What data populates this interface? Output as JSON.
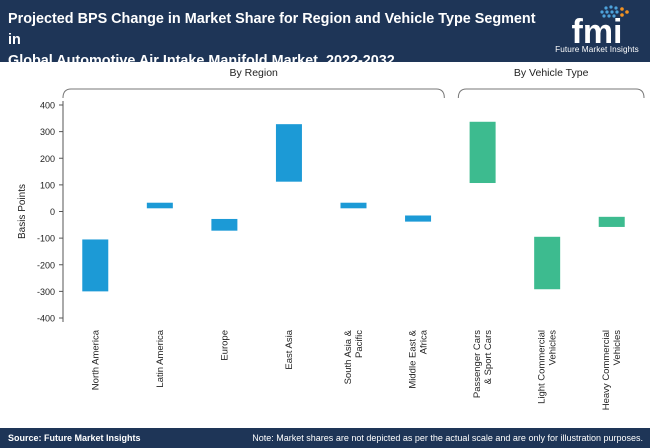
{
  "header": {
    "title_line1": "Projected BPS Change in Market Share for Region and Vehicle Type Segment in",
    "title_line2": "Global Automotive Air Intake Manifold Market, 2022-2032",
    "logo_mark": "fmi",
    "logo_text": "Future Market Insights"
  },
  "footer": {
    "source": "Source: Future Market Insights",
    "note": "Note: Market shares are not depicted as per the actual scale and are only for illustration purposes."
  },
  "colors": {
    "header_bg": "#1e3557",
    "region_bar": "#1c9ad6",
    "vehicle_bar": "#3dbb8f",
    "logo_orange": "#f39221",
    "logo_blue": "#4ea3dc"
  },
  "chart_data": {
    "type": "bar",
    "subtype": "floating",
    "title": "Projected BPS Change in Market Share for Region and Vehicle Type Segment in Global Automotive Air Intake Manifold Market, 2022-2032",
    "ylabel": "Basis Points",
    "xlabel": "",
    "ylim": [
      -400,
      400
    ],
    "yticks": [
      400,
      300,
      200,
      100,
      0,
      -100,
      -200,
      -300,
      -400
    ],
    "grid": false,
    "groups": [
      {
        "name": "By Region",
        "first": 0,
        "last": 5
      },
      {
        "name": "By Vehicle Type",
        "first": 6,
        "last": 8
      }
    ],
    "categories": [
      {
        "label": [
          "North America"
        ],
        "group": "By Region",
        "low": -300,
        "high": -105
      },
      {
        "label": [
          "Latin America"
        ],
        "group": "By Region",
        "low": 12,
        "high": 33
      },
      {
        "label": [
          "Europe"
        ],
        "group": "By Region",
        "low": -72,
        "high": -28
      },
      {
        "label": [
          "East Asia"
        ],
        "group": "By Region",
        "low": 112,
        "high": 328
      },
      {
        "label": [
          "South Asia &",
          "Pacific"
        ],
        "group": "By Region",
        "low": 12,
        "high": 33
      },
      {
        "label": [
          "Middle East &",
          "Africa"
        ],
        "group": "By Region",
        "low": -38,
        "high": -15
      },
      {
        "label": [
          "Passenger Cars",
          "& Sport Cars"
        ],
        "group": "By Vehicle Type",
        "low": 107,
        "high": 337
      },
      {
        "label": [
          "Light Commercial",
          "Vehicles"
        ],
        "group": "By Vehicle Type",
        "low": -292,
        "high": -95
      },
      {
        "label": [
          "Heavy Commercial",
          "Vehicles"
        ],
        "group": "By Vehicle Type",
        "low": -58,
        "high": -20
      }
    ]
  }
}
